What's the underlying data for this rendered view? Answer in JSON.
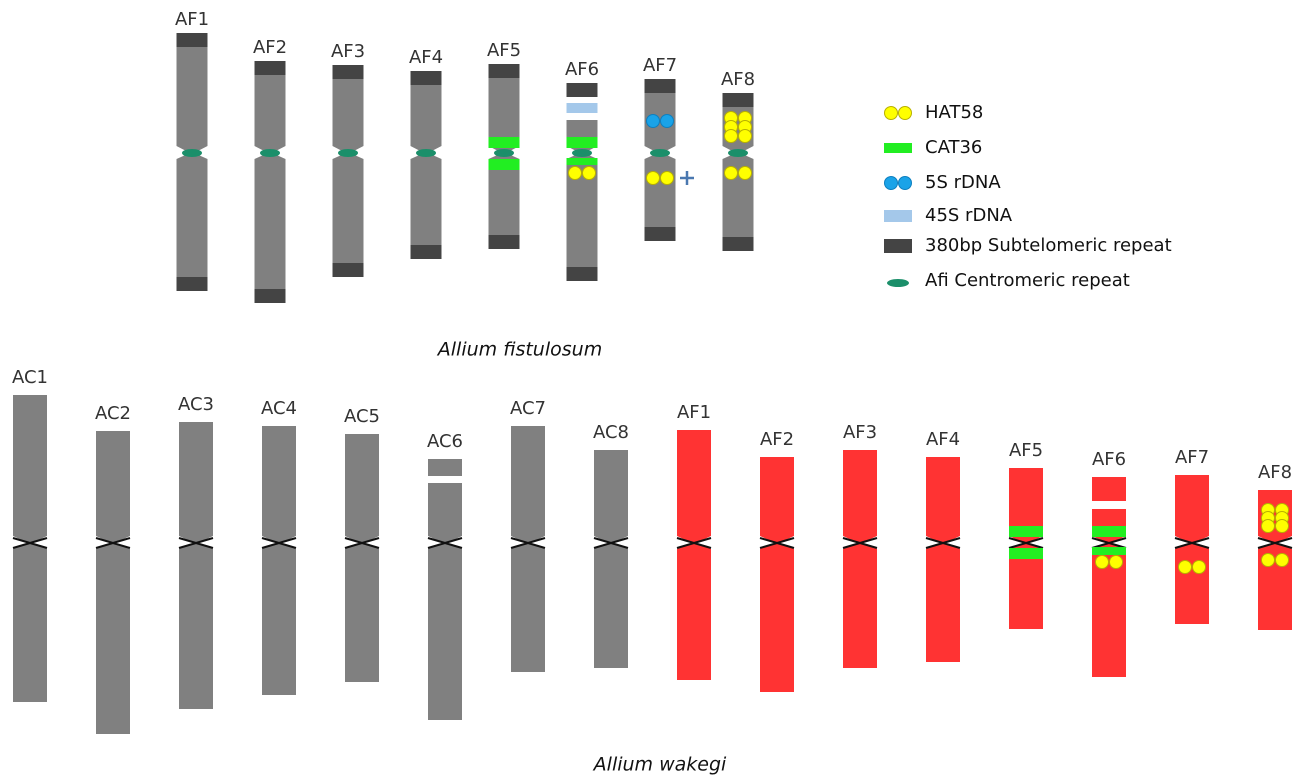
{
  "top": {
    "chromosomes": [
      "AF1",
      "AF2",
      "AF3",
      "AF4",
      "AF5",
      "AF6",
      "AF7",
      "AF8"
    ],
    "caption": "Allium fistulosum"
  },
  "legend": [
    "HAT58",
    "CAT36",
    "5S rDNA",
    "45S rDNA",
    "380bp Subtelomeric repeat",
    "Afi Centromeric repeat"
  ],
  "bottom": {
    "chromosomes": [
      "AC1",
      "AC2",
      "AC3",
      "AC4",
      "AC5",
      "AC6",
      "AC7",
      "AC8",
      "AF1",
      "AF2",
      "AF3",
      "AF4",
      "AF5",
      "AF6",
      "AF7",
      "AF8"
    ],
    "caption": "Allium wakegi"
  }
}
